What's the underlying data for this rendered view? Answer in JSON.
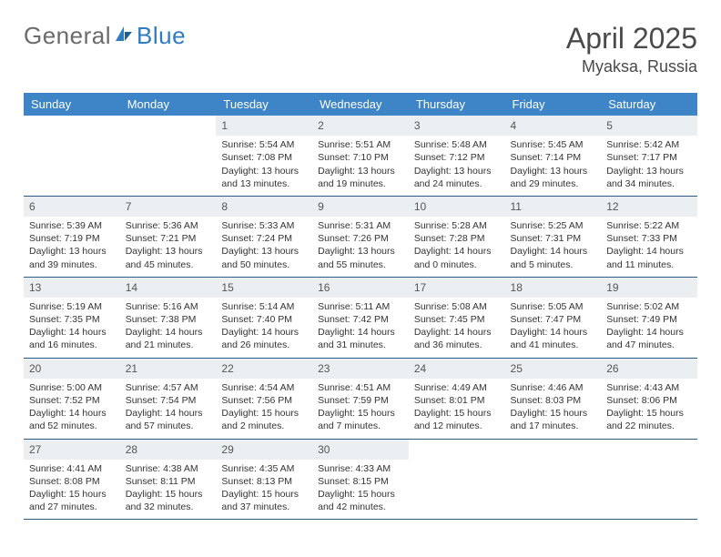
{
  "logo": {
    "part1": "General",
    "part2": "Blue"
  },
  "title": "April 2025",
  "location": "Myaksa, Russia",
  "colors": {
    "header_bg": "#3d85c6",
    "header_fg": "#ffffff",
    "rule": "#2b5b88",
    "daynum_bg": "#eceff1"
  },
  "weekdays": [
    "Sunday",
    "Monday",
    "Tuesday",
    "Wednesday",
    "Thursday",
    "Friday",
    "Saturday"
  ],
  "leading_blanks": 2,
  "days": [
    {
      "n": 1,
      "sr": "5:54 AM",
      "ss": "7:08 PM",
      "dl": "13 hours and 13 minutes."
    },
    {
      "n": 2,
      "sr": "5:51 AM",
      "ss": "7:10 PM",
      "dl": "13 hours and 19 minutes."
    },
    {
      "n": 3,
      "sr": "5:48 AM",
      "ss": "7:12 PM",
      "dl": "13 hours and 24 minutes."
    },
    {
      "n": 4,
      "sr": "5:45 AM",
      "ss": "7:14 PM",
      "dl": "13 hours and 29 minutes."
    },
    {
      "n": 5,
      "sr": "5:42 AM",
      "ss": "7:17 PM",
      "dl": "13 hours and 34 minutes."
    },
    {
      "n": 6,
      "sr": "5:39 AM",
      "ss": "7:19 PM",
      "dl": "13 hours and 39 minutes."
    },
    {
      "n": 7,
      "sr": "5:36 AM",
      "ss": "7:21 PM",
      "dl": "13 hours and 45 minutes."
    },
    {
      "n": 8,
      "sr": "5:33 AM",
      "ss": "7:24 PM",
      "dl": "13 hours and 50 minutes."
    },
    {
      "n": 9,
      "sr": "5:31 AM",
      "ss": "7:26 PM",
      "dl": "13 hours and 55 minutes."
    },
    {
      "n": 10,
      "sr": "5:28 AM",
      "ss": "7:28 PM",
      "dl": "14 hours and 0 minutes."
    },
    {
      "n": 11,
      "sr": "5:25 AM",
      "ss": "7:31 PM",
      "dl": "14 hours and 5 minutes."
    },
    {
      "n": 12,
      "sr": "5:22 AM",
      "ss": "7:33 PM",
      "dl": "14 hours and 11 minutes."
    },
    {
      "n": 13,
      "sr": "5:19 AM",
      "ss": "7:35 PM",
      "dl": "14 hours and 16 minutes."
    },
    {
      "n": 14,
      "sr": "5:16 AM",
      "ss": "7:38 PM",
      "dl": "14 hours and 21 minutes."
    },
    {
      "n": 15,
      "sr": "5:14 AM",
      "ss": "7:40 PM",
      "dl": "14 hours and 26 minutes."
    },
    {
      "n": 16,
      "sr": "5:11 AM",
      "ss": "7:42 PM",
      "dl": "14 hours and 31 minutes."
    },
    {
      "n": 17,
      "sr": "5:08 AM",
      "ss": "7:45 PM",
      "dl": "14 hours and 36 minutes."
    },
    {
      "n": 18,
      "sr": "5:05 AM",
      "ss": "7:47 PM",
      "dl": "14 hours and 41 minutes."
    },
    {
      "n": 19,
      "sr": "5:02 AM",
      "ss": "7:49 PM",
      "dl": "14 hours and 47 minutes."
    },
    {
      "n": 20,
      "sr": "5:00 AM",
      "ss": "7:52 PM",
      "dl": "14 hours and 52 minutes."
    },
    {
      "n": 21,
      "sr": "4:57 AM",
      "ss": "7:54 PM",
      "dl": "14 hours and 57 minutes."
    },
    {
      "n": 22,
      "sr": "4:54 AM",
      "ss": "7:56 PM",
      "dl": "15 hours and 2 minutes."
    },
    {
      "n": 23,
      "sr": "4:51 AM",
      "ss": "7:59 PM",
      "dl": "15 hours and 7 minutes."
    },
    {
      "n": 24,
      "sr": "4:49 AM",
      "ss": "8:01 PM",
      "dl": "15 hours and 12 minutes."
    },
    {
      "n": 25,
      "sr": "4:46 AM",
      "ss": "8:03 PM",
      "dl": "15 hours and 17 minutes."
    },
    {
      "n": 26,
      "sr": "4:43 AM",
      "ss": "8:06 PM",
      "dl": "15 hours and 22 minutes."
    },
    {
      "n": 27,
      "sr": "4:41 AM",
      "ss": "8:08 PM",
      "dl": "15 hours and 27 minutes."
    },
    {
      "n": 28,
      "sr": "4:38 AM",
      "ss": "8:11 PM",
      "dl": "15 hours and 32 minutes."
    },
    {
      "n": 29,
      "sr": "4:35 AM",
      "ss": "8:13 PM",
      "dl": "15 hours and 37 minutes."
    },
    {
      "n": 30,
      "sr": "4:33 AM",
      "ss": "8:15 PM",
      "dl": "15 hours and 42 minutes."
    }
  ],
  "labels": {
    "sunrise": "Sunrise:",
    "sunset": "Sunset:",
    "daylight": "Daylight:"
  }
}
